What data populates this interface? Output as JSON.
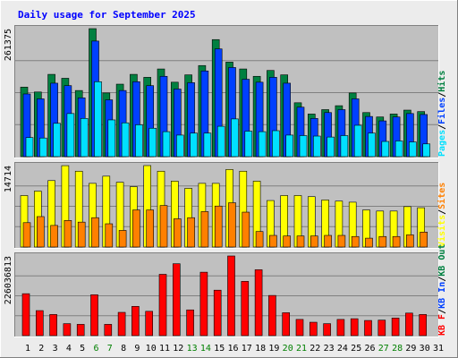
{
  "chart_data": {
    "type": "bar",
    "title": "Daily usage for September 2025",
    "categories": [
      "1",
      "2",
      "3",
      "4",
      "5",
      "6",
      "7",
      "8",
      "9",
      "10",
      "11",
      "12",
      "13",
      "14",
      "15",
      "16",
      "17",
      "18",
      "19",
      "20",
      "21",
      "22",
      "23",
      "24",
      "25",
      "26",
      "27",
      "28",
      "29",
      "30",
      "31"
    ],
    "weekend_days": [
      "6",
      "7",
      "13",
      "14",
      "20",
      "21",
      "27",
      "28"
    ],
    "colors": {
      "hits": "#008040",
      "files": "#0040ff",
      "pages": "#00e0ff",
      "visits": "#ffff00",
      "sites": "#ff8000",
      "kbytes": "#ff0000",
      "title": "#0000ff",
      "weekend": "#008000",
      "weekday": "#000000",
      "panel_bg": "#c0c0c0"
    },
    "panels": [
      {
        "id": "top",
        "ymax_label": "261375",
        "ylim": [
          0,
          261375
        ],
        "right_labels": [
          {
            "text": "Pages",
            "color": "#00e0ff"
          },
          {
            "text": "/",
            "color": "#000000"
          },
          {
            "text": "Files",
            "color": "#0040ff"
          },
          {
            "text": "/",
            "color": "#000000"
          },
          {
            "text": "Hits",
            "color": "#008040"
          }
        ],
        "series": [
          {
            "name": "Hits",
            "color": "#008040",
            "values": [
              142000,
              132000,
              168000,
              160000,
              135000,
              261375,
              130000,
              148000,
              168000,
              162000,
              179000,
              152000,
              167000,
              186000,
              239000,
              193000,
              179000,
              164000,
              176000,
              167000,
              110000,
              87000,
              96000,
              104000,
              130000,
              90000,
              81000,
              87000,
              95000,
              92000,
              0
            ]
          },
          {
            "name": "Files",
            "color": "#0040ff",
            "values": [
              128000,
              118000,
              150000,
              145000,
              120000,
              236000,
              116000,
              135000,
              153000,
              145000,
              164000,
              138000,
              151000,
              175000,
              220000,
              182000,
              158000,
              152000,
              162000,
              150000,
              101000,
              78000,
              90000,
              96000,
              118000,
              82000,
              73000,
              81000,
              88000,
              86000,
              0
            ]
          },
          {
            "name": "Pages",
            "color": "#00e0ff",
            "values": [
              39000,
              38000,
              68000,
              88000,
              78000,
              153000,
              75000,
              69000,
              65000,
              58000,
              51000,
              44000,
              48000,
              48000,
              62000,
              77000,
              52000,
              51000,
              53000,
              44000,
              43000,
              42000,
              40000,
              43000,
              64000,
              48000,
              31000,
              32000,
              30000,
              26000,
              0
            ]
          }
        ]
      },
      {
        "id": "middle",
        "ymax_label": "14714",
        "ylim": [
          0,
          14714
        ],
        "right_labels": [
          {
            "text": "Visits",
            "color": "#ffff00"
          },
          {
            "text": "/",
            "color": "#000000"
          },
          {
            "text": "Sites",
            "color": "#ff8000"
          }
        ],
        "series": [
          {
            "name": "Visits",
            "color": "#ffff00",
            "values": [
              9300,
              10100,
              12000,
              14700,
              13700,
              11500,
              12800,
              11700,
              10900,
              14714,
              13700,
              11900,
              10600,
              11500,
              11500,
              14000,
              13700,
              11900,
              8400,
              9300,
              9300,
              9100,
              8500,
              8300,
              8100,
              6700,
              6500,
              6500,
              7300,
              7100,
              0
            ]
          },
          {
            "name": "Sites",
            "color": "#ff8000",
            "values": [
              4400,
              5500,
              3900,
              4800,
              4500,
              5300,
              4200,
              3000,
              6700,
              6700,
              7500,
              5100,
              5300,
              6400,
              7400,
              8000,
              6300,
              2800,
              2100,
              2000,
              2000,
              2000,
              2100,
              2100,
              1900,
              1600,
              1900,
              1900,
              2200,
              2700,
              0
            ]
          }
        ]
      },
      {
        "id": "bottom",
        "ymax_label": "226036813",
        "ylim": [
          0,
          226036813
        ],
        "right_labels": [
          {
            "text": "KB F",
            "color": "#ff0000"
          },
          {
            "text": "/",
            "color": "#000000"
          },
          {
            "text": "KB In",
            "color": "#0040ff"
          },
          {
            "text": "/",
            "color": "#000000"
          },
          {
            "text": "KB Out",
            "color": "#008040"
          }
        ],
        "series": [
          {
            "name": "KB F",
            "color": "#ff0000",
            "values": [
              119000000,
              71000000,
              60000000,
              34000000,
              32000000,
              116000000,
              32000000,
              66000000,
              83000000,
              69000000,
              174000000,
              204000000,
              73000000,
              180000000,
              129000000,
              226036813,
              154000000,
              187000000,
              114000000,
              65000000,
              46000000,
              38000000,
              34000000,
              46000000,
              48000000,
              43000000,
              44000000,
              50000000,
              64000000,
              60000000,
              0
            ]
          }
        ]
      }
    ]
  }
}
